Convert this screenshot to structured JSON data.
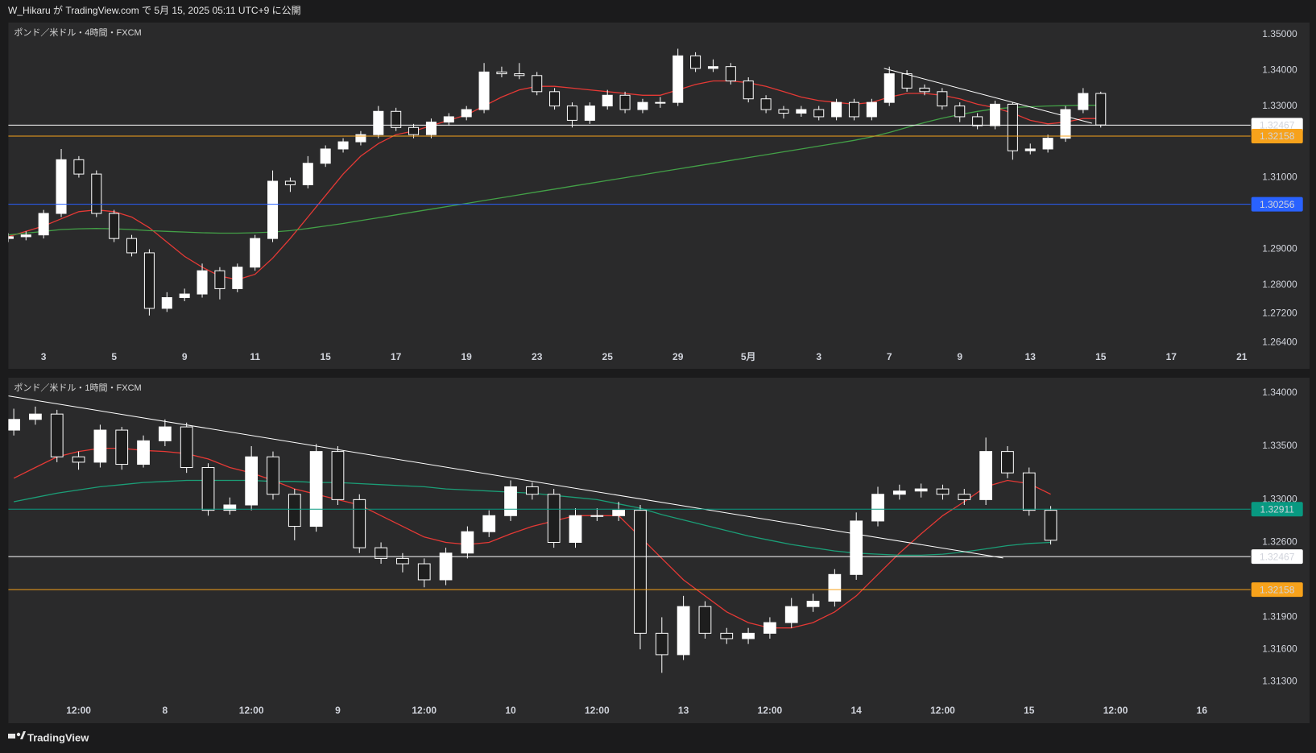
{
  "header": {
    "text": "W_Hikaru が TradingView.com で 5月 15, 2025 05:11 UTC+9 に公開"
  },
  "footer": {
    "brand": "TradingView"
  },
  "chart_data": [
    {
      "type": "candlestick",
      "title": "ポンド／米ドル・4時間・FXCM",
      "colors": {
        "up": "#ffffff",
        "down": "#1e1e1e"
      },
      "xlim": [
        0,
        70.5
      ],
      "xticks": [
        {
          "value": 2,
          "label": "3"
        },
        {
          "value": 6,
          "label": "5"
        },
        {
          "value": 10,
          "label": "9"
        },
        {
          "value": 14,
          "label": "11"
        },
        {
          "value": 18,
          "label": "15"
        },
        {
          "value": 22,
          "label": "17"
        },
        {
          "value": 26,
          "label": "19"
        },
        {
          "value": 30,
          "label": "23"
        },
        {
          "value": 34,
          "label": "25"
        },
        {
          "value": 38,
          "label": "29"
        },
        {
          "value": 42,
          "label": "5月"
        },
        {
          "value": 46,
          "label": "3"
        },
        {
          "value": 50,
          "label": "7"
        },
        {
          "value": 54,
          "label": "9"
        },
        {
          "value": 58,
          "label": "13"
        },
        {
          "value": 62,
          "label": "15"
        },
        {
          "value": 66,
          "label": "17"
        },
        {
          "value": 70,
          "label": "21"
        }
      ],
      "ylim": [
        1.2629,
        1.3533
      ],
      "yticks": [
        {
          "value": 1.35,
          "label": "1.35000"
        },
        {
          "value": 1.34,
          "label": "1.34000"
        },
        {
          "value": 1.33,
          "label": "1.33000"
        },
        {
          "value": 1.31,
          "label": "1.31000"
        },
        {
          "value": 1.29,
          "label": "1.29000"
        },
        {
          "value": 1.28,
          "label": "1.28000"
        },
        {
          "value": 1.272,
          "label": "1.27200"
        },
        {
          "value": 1.264,
          "label": "1.26400"
        }
      ],
      "open": [
        1.293,
        1.2935,
        1.294,
        1.3,
        1.315,
        1.311,
        1.3,
        1.293,
        1.289,
        1.2735,
        1.2765,
        1.2775,
        1.284,
        1.279,
        1.285,
        1.293,
        1.309,
        1.308,
        1.314,
        1.318,
        1.32,
        1.322,
        1.3285,
        1.324,
        1.322,
        1.3255,
        1.327,
        1.329,
        1.3395,
        1.339,
        1.3385,
        1.334,
        1.33,
        1.326,
        1.33,
        1.333,
        1.329,
        1.331,
        1.331,
        1.344,
        1.3405,
        1.341,
        1.337,
        1.332,
        1.329,
        1.328,
        1.329,
        1.327,
        1.331,
        1.327,
        1.331,
        1.339,
        1.335,
        1.334,
        1.33,
        1.327,
        1.3245,
        1.3305,
        1.3175,
        1.318,
        1.321,
        1.329,
        1.3335
      ],
      "high": [
        1.2945,
        1.295,
        1.301,
        1.318,
        1.316,
        1.312,
        1.301,
        1.294,
        1.29,
        1.278,
        1.279,
        1.286,
        1.285,
        1.286,
        1.294,
        1.312,
        1.31,
        1.316,
        1.319,
        1.321,
        1.323,
        1.33,
        1.3295,
        1.325,
        1.3265,
        1.328,
        1.33,
        1.342,
        1.341,
        1.342,
        1.3395,
        1.335,
        1.331,
        1.331,
        1.3345,
        1.334,
        1.332,
        1.3325,
        1.346,
        1.345,
        1.343,
        1.342,
        1.338,
        1.333,
        1.33,
        1.33,
        1.33,
        1.332,
        1.332,
        1.332,
        1.341,
        1.34,
        1.336,
        1.335,
        1.331,
        1.328,
        1.3315,
        1.331,
        1.3195,
        1.322,
        1.33,
        1.335,
        1.334
      ],
      "low": [
        1.292,
        1.2925,
        1.293,
        1.299,
        1.31,
        1.299,
        1.292,
        1.288,
        1.2715,
        1.2725,
        1.2755,
        1.2765,
        1.276,
        1.278,
        1.284,
        1.292,
        1.306,
        1.307,
        1.313,
        1.317,
        1.319,
        1.321,
        1.323,
        1.321,
        1.321,
        1.3245,
        1.326,
        1.328,
        1.338,
        1.3375,
        1.333,
        1.329,
        1.324,
        1.325,
        1.329,
        1.328,
        1.328,
        1.3295,
        1.33,
        1.3395,
        1.3395,
        1.336,
        1.331,
        1.328,
        1.3265,
        1.327,
        1.326,
        1.326,
        1.326,
        1.326,
        1.33,
        1.334,
        1.333,
        1.329,
        1.3255,
        1.3235,
        1.3235,
        1.315,
        1.3165,
        1.317,
        1.32,
        1.328,
        1.324
      ],
      "close": [
        1.2935,
        1.294,
        1.3,
        1.315,
        1.311,
        1.3,
        1.293,
        1.289,
        1.2735,
        1.2765,
        1.2775,
        1.284,
        1.279,
        1.285,
        1.293,
        1.309,
        1.308,
        1.314,
        1.318,
        1.32,
        1.322,
        1.3285,
        1.324,
        1.322,
        1.3255,
        1.327,
        1.329,
        1.3395,
        1.339,
        1.3385,
        1.334,
        1.33,
        1.326,
        1.33,
        1.333,
        1.329,
        1.331,
        1.331,
        1.344,
        1.3405,
        1.341,
        1.337,
        1.332,
        1.329,
        1.328,
        1.329,
        1.327,
        1.331,
        1.327,
        1.331,
        1.339,
        1.335,
        1.334,
        1.33,
        1.327,
        1.3245,
        1.3305,
        1.3175,
        1.318,
        1.321,
        1.329,
        1.3335,
        1.3247
      ],
      "moving_averages": [
        {
          "color": "#e53935",
          "values": [
            1.2935,
            1.295,
            1.2965,
            1.2985,
            1.3005,
            1.301,
            1.3005,
            1.299,
            1.296,
            1.292,
            1.288,
            1.285,
            1.2825,
            1.2815,
            1.283,
            1.2875,
            1.293,
            1.299,
            1.305,
            1.311,
            1.316,
            1.3195,
            1.322,
            1.323,
            1.3245,
            1.326,
            1.3275,
            1.33,
            1.3325,
            1.3345,
            1.3355,
            1.3355,
            1.335,
            1.3345,
            1.334,
            1.3335,
            1.333,
            1.333,
            1.3345,
            1.336,
            1.337,
            1.337,
            1.3365,
            1.3355,
            1.334,
            1.3325,
            1.3315,
            1.331,
            1.3305,
            1.331,
            1.3325,
            1.3335,
            1.3335,
            1.333,
            1.332,
            1.3305,
            1.3295,
            1.328,
            1.326,
            1.325,
            1.3255,
            1.3265,
            1.3265
          ]
        },
        {
          "color": "#43a047",
          "values": [
            1.294,
            1.2945,
            1.295,
            1.2955,
            1.2957,
            1.2958,
            1.2957,
            1.2955,
            1.2952,
            1.295,
            1.2948,
            1.2946,
            1.2945,
            1.2945,
            1.2946,
            1.2948,
            1.2952,
            1.2958,
            1.2965,
            1.2972,
            1.298,
            1.2988,
            1.2996,
            1.3004,
            1.3012,
            1.302,
            1.3028,
            1.3036,
            1.3044,
            1.3052,
            1.306,
            1.3068,
            1.3076,
            1.3084,
            1.3092,
            1.31,
            1.3108,
            1.3116,
            1.3124,
            1.3132,
            1.314,
            1.3148,
            1.3156,
            1.3164,
            1.3172,
            1.318,
            1.3188,
            1.3196,
            1.3204,
            1.3214,
            1.3226,
            1.324,
            1.3254,
            1.3266,
            1.3276,
            1.3285,
            1.3292,
            1.3296,
            1.3298,
            1.33,
            1.3301,
            1.3302,
            1.3302
          ]
        }
      ],
      "levels": [
        {
          "value": 1.32467,
          "color": "#ffffff",
          "text_color": "#000000"
        },
        {
          "value": 1.32158,
          "color": "#f7a21b",
          "text_color": "#000000"
        },
        {
          "value": 1.30256,
          "color": "#2962ff",
          "text_color": "#ffffff"
        }
      ],
      "trendline": {
        "color": "#ffffff",
        "x": [
          49.7,
          61.5
        ],
        "y": [
          1.3405,
          1.3252
        ]
      }
    },
    {
      "type": "candlestick",
      "title": "ポンド／米ドル・1時間・FXCM",
      "colors": {
        "up": "#ffffff",
        "down": "#1e1e1e"
      },
      "xlim": [
        -0.25,
        57.25
      ],
      "xticks": [
        {
          "value": 3,
          "label": "12:00"
        },
        {
          "value": 7,
          "label": "8"
        },
        {
          "value": 11,
          "label": "12:00"
        },
        {
          "value": 15,
          "label": "9"
        },
        {
          "value": 19,
          "label": "12:00"
        },
        {
          "value": 23,
          "label": "10"
        },
        {
          "value": 27,
          "label": "12:00"
        },
        {
          "value": 31,
          "label": "13"
        },
        {
          "value": 35,
          "label": "12:00"
        },
        {
          "value": 39,
          "label": "14"
        },
        {
          "value": 43,
          "label": "12:00"
        },
        {
          "value": 47,
          "label": "15"
        },
        {
          "value": 51,
          "label": "12:00"
        },
        {
          "value": 55,
          "label": "16"
        }
      ],
      "ylim": [
        1.3112,
        1.3414
      ],
      "yticks": [
        {
          "value": 1.34,
          "label": "1.34000"
        },
        {
          "value": 1.335,
          "label": "1.33500"
        },
        {
          "value": 1.33,
          "label": "1.33000"
        },
        {
          "value": 1.326,
          "label": "1.32600"
        },
        {
          "value": 1.319,
          "label": "1.31900"
        },
        {
          "value": 1.316,
          "label": "1.31600"
        },
        {
          "value": 1.313,
          "label": "1.31300"
        }
      ],
      "open": [
        1.3365,
        1.3375,
        1.338,
        1.334,
        1.3335,
        1.3365,
        1.3333,
        1.3355,
        1.3368,
        1.333,
        1.329,
        1.3295,
        1.334,
        1.3305,
        1.3275,
        1.3345,
        1.33,
        1.3255,
        1.3245,
        1.324,
        1.3225,
        1.325,
        1.327,
        1.3285,
        1.3312,
        1.3305,
        1.326,
        1.3285,
        1.3285,
        1.329,
        1.3175,
        1.3155,
        1.32,
        1.3175,
        1.317,
        1.3175,
        1.3185,
        1.32,
        1.3205,
        1.323,
        1.328,
        1.3305,
        1.3308,
        1.331,
        1.3305,
        1.33,
        1.3345,
        1.3325,
        1.329
      ],
      "high": [
        1.3385,
        1.3387,
        1.3384,
        1.3345,
        1.337,
        1.3368,
        1.336,
        1.3375,
        1.3372,
        1.3334,
        1.3302,
        1.335,
        1.3345,
        1.331,
        1.3352,
        1.335,
        1.3305,
        1.326,
        1.325,
        1.3245,
        1.3255,
        1.3275,
        1.329,
        1.3318,
        1.3316,
        1.331,
        1.3292,
        1.3292,
        1.3298,
        1.3295,
        1.319,
        1.321,
        1.3205,
        1.318,
        1.318,
        1.319,
        1.3208,
        1.3212,
        1.3235,
        1.3288,
        1.3312,
        1.3314,
        1.3315,
        1.3314,
        1.331,
        1.3358,
        1.335,
        1.333,
        1.3294
      ],
      "low": [
        1.336,
        1.337,
        1.3335,
        1.3328,
        1.333,
        1.3328,
        1.333,
        1.335,
        1.3325,
        1.3285,
        1.3286,
        1.329,
        1.33,
        1.3262,
        1.327,
        1.3295,
        1.325,
        1.324,
        1.3232,
        1.3218,
        1.322,
        1.3245,
        1.3265,
        1.328,
        1.33,
        1.3255,
        1.3255,
        1.328,
        1.328,
        1.316,
        1.3138,
        1.315,
        1.317,
        1.3165,
        1.3165,
        1.317,
        1.318,
        1.3195,
        1.32,
        1.3225,
        1.3275,
        1.33,
        1.3302,
        1.33,
        1.3295,
        1.3295,
        1.332,
        1.3285,
        1.3258
      ],
      "close": [
        1.3375,
        1.338,
        1.334,
        1.3335,
        1.3365,
        1.3333,
        1.3355,
        1.3368,
        1.333,
        1.329,
        1.3295,
        1.334,
        1.3305,
        1.3275,
        1.3345,
        1.33,
        1.3255,
        1.3245,
        1.324,
        1.3225,
        1.325,
        1.327,
        1.3285,
        1.3312,
        1.3305,
        1.326,
        1.3285,
        1.3285,
        1.329,
        1.3175,
        1.3155,
        1.32,
        1.3175,
        1.317,
        1.3175,
        1.3185,
        1.32,
        1.3205,
        1.323,
        1.328,
        1.3305,
        1.3308,
        1.331,
        1.3305,
        1.33,
        1.3345,
        1.3325,
        1.329,
        1.3262
      ],
      "moving_averages": [
        {
          "color": "#e53935",
          "values": [
            1.332,
            1.333,
            1.334,
            1.3345,
            1.3348,
            1.3348,
            1.3346,
            1.3345,
            1.3343,
            1.3338,
            1.333,
            1.3325,
            1.3318,
            1.331,
            1.3305,
            1.33,
            1.3295,
            1.3285,
            1.3275,
            1.3265,
            1.326,
            1.3258,
            1.326,
            1.3268,
            1.3275,
            1.328,
            1.3285,
            1.3285,
            1.3285,
            1.3265,
            1.3245,
            1.3225,
            1.321,
            1.3195,
            1.3185,
            1.318,
            1.318,
            1.3185,
            1.3195,
            1.321,
            1.323,
            1.325,
            1.3268,
            1.3285,
            1.3298,
            1.3312,
            1.3318,
            1.3315,
            1.3305
          ]
        },
        {
          "color": "#1b9e77",
          "values": [
            1.3298,
            1.3302,
            1.3306,
            1.3309,
            1.3312,
            1.3314,
            1.3316,
            1.3317,
            1.3318,
            1.3318,
            1.3318,
            1.3318,
            1.3317,
            1.3317,
            1.3316,
            1.3316,
            1.3315,
            1.3314,
            1.3313,
            1.3312,
            1.331,
            1.3309,
            1.3308,
            1.3307,
            1.3306,
            1.3304,
            1.3302,
            1.33,
            1.3296,
            1.3292,
            1.3286,
            1.3281,
            1.3276,
            1.3271,
            1.3266,
            1.3262,
            1.3258,
            1.3255,
            1.3252,
            1.325,
            1.3249,
            1.3248,
            1.3248,
            1.3249,
            1.3251,
            1.3254,
            1.3257,
            1.3259,
            1.326
          ]
        }
      ],
      "levels": [
        {
          "value": 1.32911,
          "color": "#089981",
          "text_color": "#ffffff"
        },
        {
          "value": 1.32467,
          "color": "#ffffff",
          "text_color": "#000000"
        },
        {
          "value": 1.32158,
          "color": "#f7a21b",
          "text_color": "#000000"
        }
      ],
      "trendline": {
        "color": "#ffffff",
        "x": [
          -0.25,
          45.8
        ],
        "y": [
          1.3397,
          1.32454
        ]
      }
    }
  ]
}
